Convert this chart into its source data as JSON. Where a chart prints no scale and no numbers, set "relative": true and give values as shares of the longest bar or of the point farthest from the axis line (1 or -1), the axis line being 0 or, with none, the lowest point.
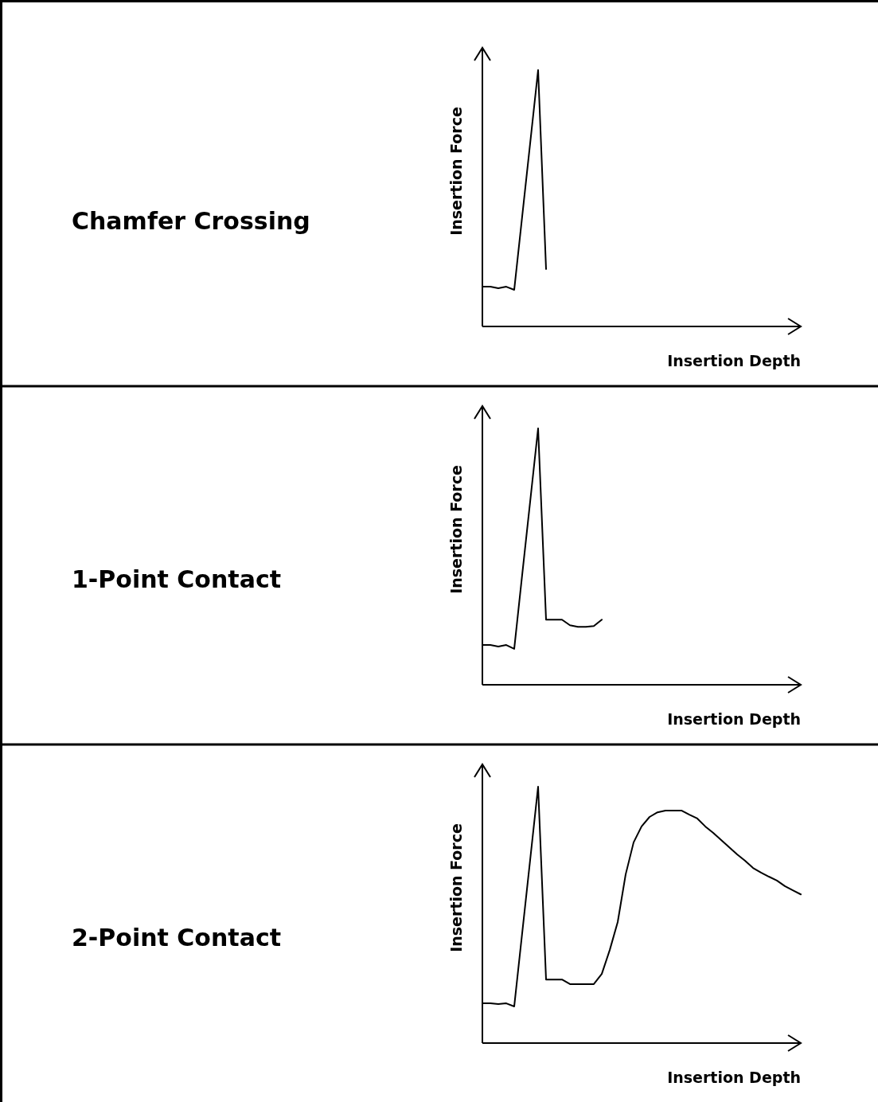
{
  "chart_data": [
    {
      "type": "line",
      "annotations": [
        "Chamfer Crossing"
      ],
      "xlabel": "Insertion Depth",
      "ylabel": "Insertion Force",
      "relative": true,
      "line_style": "solid",
      "categories": [
        null,
        null,
        null,
        null,
        null,
        null,
        null,
        null,
        null,
        null,
        null,
        null,
        null,
        null,
        null,
        null,
        null,
        null,
        null,
        null,
        null,
        null,
        null,
        null,
        null,
        null,
        null,
        null,
        null,
        null,
        null,
        null,
        null,
        null,
        null,
        null,
        null,
        null,
        null,
        null,
        null
      ],
      "series": [
        {
          "color": "#000000",
          "values": [
            0.155,
            0.155,
            0.149,
            0.155,
            0.143,
            0.429,
            0.714,
            1,
            0.224,
            null,
            null,
            null,
            null,
            null,
            null,
            null,
            null,
            null,
            null,
            null,
            null,
            null,
            null,
            null,
            null,
            null,
            null,
            null,
            null,
            null,
            null,
            null,
            null,
            null,
            null,
            null,
            null,
            null,
            null,
            null,
            null
          ]
        }
      ]
    },
    {
      "type": "line",
      "annotations": [
        "1-Point Contact"
      ],
      "xlabel": "Insertion Depth",
      "ylabel": "Insertion Force",
      "relative": true,
      "line_style": "solid",
      "categories": [
        null,
        null,
        null,
        null,
        null,
        null,
        null,
        null,
        null,
        null,
        null,
        null,
        null,
        null,
        null,
        null,
        null,
        null,
        null,
        null,
        null,
        null,
        null,
        null,
        null,
        null,
        null,
        null,
        null,
        null,
        null,
        null,
        null,
        null,
        null,
        null,
        null,
        null,
        null,
        null,
        null
      ],
      "series": [
        {
          "color": "#000000",
          "values": [
            0.155,
            0.155,
            0.149,
            0.155,
            0.14,
            0.429,
            0.714,
            1,
            0.254,
            0.254,
            0.254,
            0.232,
            0.226,
            0.226,
            0.229,
            0.254,
            null,
            null,
            null,
            null,
            null,
            null,
            null,
            null,
            null,
            null,
            null,
            null,
            null,
            null,
            null,
            null,
            null,
            null,
            null,
            null,
            null,
            null,
            null,
            null,
            null
          ]
        }
      ]
    },
    {
      "type": "line",
      "annotations": [
        "2-Point Contact"
      ],
      "xlabel": "Insertion Depth",
      "ylabel": "Insertion Force",
      "relative": true,
      "line_style": "solid",
      "categories": [
        null,
        null,
        null,
        null,
        null,
        null,
        null,
        null,
        null,
        null,
        null,
        null,
        null,
        null,
        null,
        null,
        null,
        null,
        null,
        null,
        null,
        null,
        null,
        null,
        null,
        null,
        null,
        null,
        null,
        null,
        null,
        null,
        null,
        null,
        null,
        null,
        null,
        null,
        null,
        null,
        null
      ],
      "series": [
        {
          "color": "#000000",
          "values": [
            0.155,
            0.155,
            0.152,
            0.155,
            0.143,
            0.429,
            0.714,
            1,
            0.248,
            0.248,
            0.248,
            0.23,
            0.23,
            0.23,
            0.23,
            0.27,
            0.363,
            0.472,
            0.658,
            0.783,
            0.845,
            0.882,
            0.9,
            0.907,
            0.907,
            0.907,
            0.891,
            0.876,
            0.845,
            0.82,
            0.792,
            0.764,
            0.736,
            0.711,
            0.683,
            0.665,
            0.649,
            0.634,
            0.612,
            0.596,
            0.58
          ]
        }
      ]
    }
  ]
}
